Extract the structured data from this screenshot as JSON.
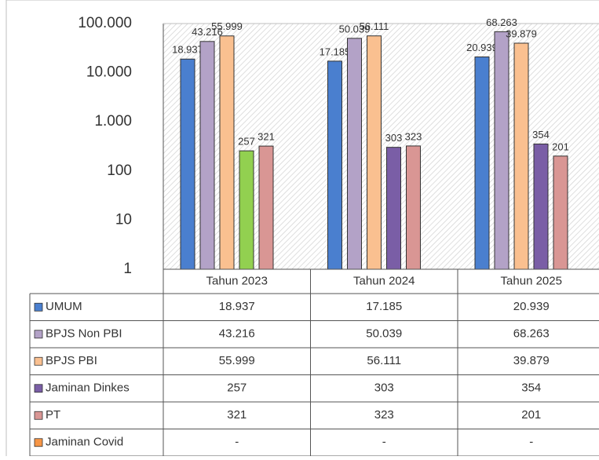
{
  "chart_data": {
    "type": "bar",
    "log_scale": true,
    "categories": [
      "Tahun 2023",
      "Tahun 2024",
      "Tahun 2025"
    ],
    "ylim": [
      1,
      100000
    ],
    "yticks": [
      {
        "value": 100000,
        "label": "100.000"
      },
      {
        "value": 10000,
        "label": "10.000"
      },
      {
        "value": 1000,
        "label": "1.000"
      },
      100,
      10,
      1
    ],
    "series": [
      {
        "name": "UMUM",
        "color": "#4a7fcf",
        "values": [
          18937,
          17185,
          20939
        ],
        "value_labels": [
          "18.937",
          "17.185",
          "20.939"
        ]
      },
      {
        "name": "BPJS Non PBI",
        "color": "#b3a2c7",
        "values": [
          43216,
          50039,
          68263
        ],
        "value_labels": [
          "43.216",
          "50.039",
          "68.263"
        ]
      },
      {
        "name": "BPJS PBI",
        "color": "#fac090",
        "values": [
          55999,
          56111,
          39879
        ],
        "value_labels": [
          "55.999",
          "56.111",
          "39.879"
        ]
      },
      {
        "name": "Jaminan Dinkes",
        "color": "#7a5ea6",
        "point_colors": [
          "#92d050",
          "#7a5ea6",
          "#7a5ea6"
        ],
        "values": [
          257,
          303,
          354
        ],
        "value_labels": [
          "257",
          "303",
          "354"
        ]
      },
      {
        "name": "PT",
        "color": "#d99694",
        "values": [
          321,
          323,
          201
        ],
        "value_labels": [
          "321",
          "323",
          "201"
        ]
      },
      {
        "name": "Jaminan Covid",
        "color": "#f79646",
        "values": [
          null,
          null,
          null
        ],
        "value_labels": [
          "-",
          "-",
          "-"
        ]
      }
    ]
  }
}
